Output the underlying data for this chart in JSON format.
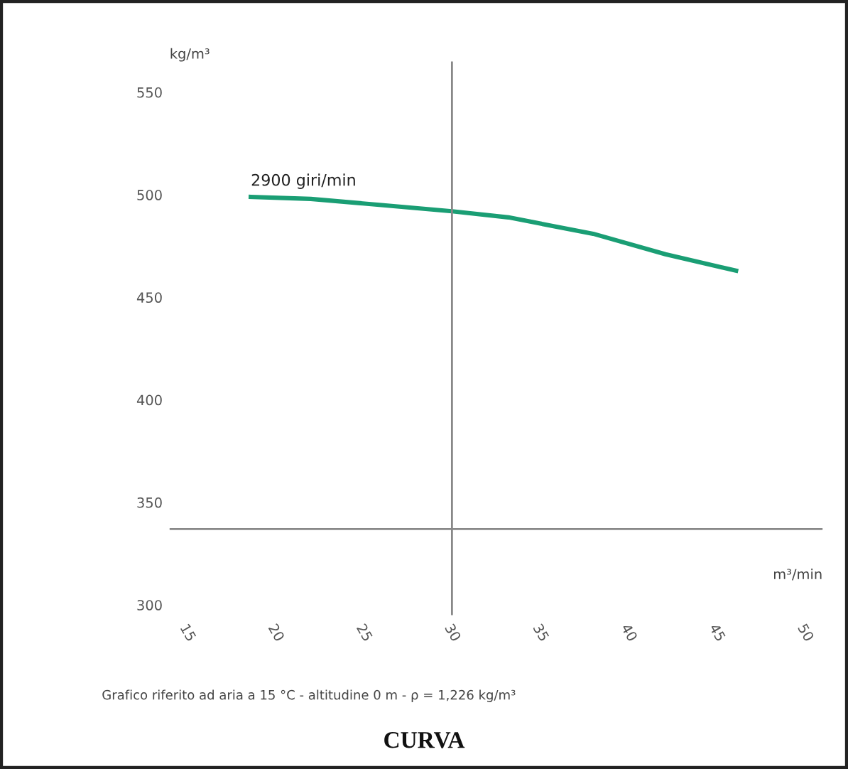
{
  "chart_data": {
    "type": "line",
    "title": "CURVA",
    "xlabel": "m³/min",
    "ylabel": "kg/m³",
    "annotations": [
      "Grafico riferito ad aria a 15 °C - altitudine 0 m - ρ = 1,226 kg/m³"
    ],
    "x": [
      18.6,
      22,
      26,
      30,
      33.2,
      38,
      42.1,
      46.1
    ],
    "series": [
      {
        "name": "2900 giri/min",
        "color": "#1a9e74",
        "values": [
          499,
          498,
          495,
          492,
          489,
          481,
          471,
          463
        ]
      }
    ],
    "xlim": [
      14,
      51
    ],
    "xticks": [
      15,
      20,
      25,
      30,
      35,
      40,
      45,
      50
    ],
    "ylim": [
      295,
      565
    ],
    "yticks": [
      300,
      350,
      400,
      450,
      500,
      550
    ],
    "ref_lines": [
      {
        "axis": "x",
        "value": 30,
        "color": "#888888"
      },
      {
        "axis": "y",
        "value": 337,
        "color": "#888888"
      }
    ],
    "grid": false,
    "legend": false,
    "marker": "none",
    "line_style": "solid"
  }
}
